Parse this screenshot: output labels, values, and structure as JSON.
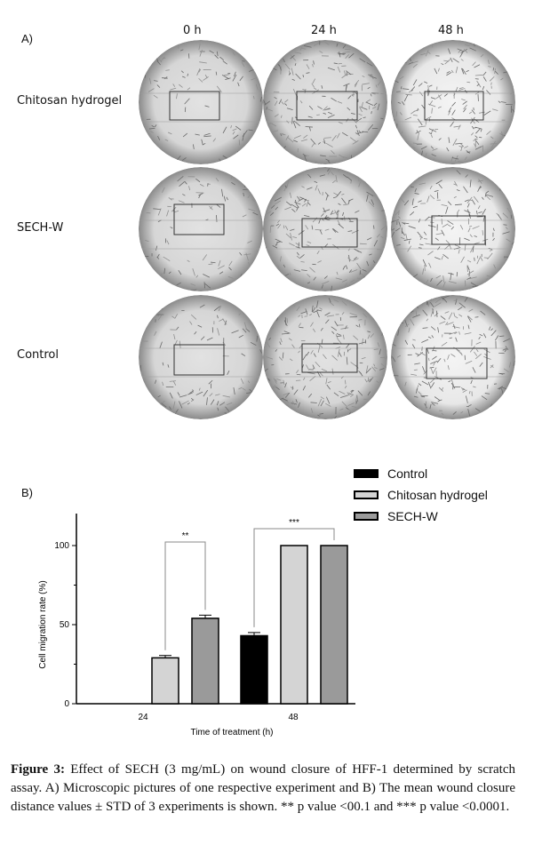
{
  "panel_a": {
    "label": "A)",
    "time_labels": [
      "0 h",
      "24 h",
      "48 h"
    ],
    "row_labels": [
      "Chitosan hydrogel",
      "SECH-W",
      "Control"
    ]
  },
  "panel_b": {
    "label": "B)"
  },
  "chart_data": {
    "type": "bar",
    "title": "",
    "xlabel": "Time of treatment (h)",
    "ylabel": "Cell migration rate (%)",
    "ylim": [
      0,
      120
    ],
    "yticks": [
      0,
      50,
      100
    ],
    "categories": [
      "24",
      "48"
    ],
    "series": [
      {
        "name": "Control",
        "color": "#000000",
        "values": [
          null,
          43
        ],
        "errors": [
          null,
          2
        ]
      },
      {
        "name": "Chitosan hydrogel",
        "color": "#d4d4d4",
        "values": [
          29,
          100
        ],
        "errors": [
          1.5,
          0
        ]
      },
      {
        "name": "SECH-W",
        "color": "#9a9a9a",
        "values": [
          54,
          100
        ],
        "errors": [
          2,
          0
        ]
      }
    ],
    "annotations": [
      {
        "text": "**",
        "category": "24",
        "from": "Chitosan hydrogel",
        "to": "SECH-W"
      },
      {
        "text": "***",
        "category": "48",
        "from": "Control",
        "to": "SECH-W"
      }
    ],
    "legend_placement": "top-right",
    "grid": false
  },
  "caption": {
    "figure_label": "Figure 3:",
    "text": "Effect of SECH (3 mg/mL) on wound closure of HFF-1 determined by scratch assay. A) Microscopic pictures of one respective experiment and B) The mean wound closure distance values ± STD of 3 experiments is shown. ** p value <00.1 and *** p value <0.0001."
  }
}
